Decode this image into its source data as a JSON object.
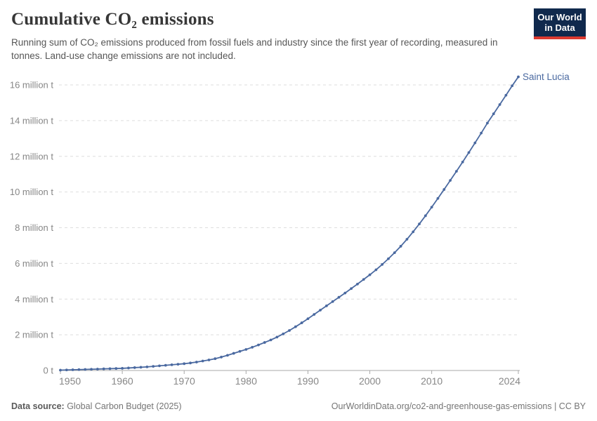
{
  "header": {
    "title": "Cumulative CO₂ emissions",
    "subtitle": "Running sum of CO₂ emissions produced from fossil fuels and industry since the first year of recording, measured in tonnes. Land-use change emissions are not included.",
    "logo": {
      "line1": "Our World",
      "line2": "in Data",
      "bg_color": "#10294d",
      "accent_color": "#dc3a30"
    }
  },
  "footer": {
    "source_label": "Data source:",
    "source_value": " Global Carbon Budget (2025)",
    "rights": "OurWorldinData.org/co2-and-greenhouse-gas-emissions | CC BY"
  },
  "chart_data": {
    "type": "line",
    "title": "Cumulative CO₂ emissions",
    "xlabel": "",
    "ylabel": "",
    "values_unit": "million tonnes",
    "xlim": [
      1950,
      2024
    ],
    "ylim": [
      0,
      16.5
    ],
    "grid": "dashed-horizontal",
    "legend_position": "end-of-line-label",
    "colors": {
      "line": "#4a69a0",
      "grid": "#dedede",
      "axis": "#a8a8a8",
      "tick_text": "#878787"
    },
    "y_ticks": [
      {
        "value": 0,
        "label": "0 t"
      },
      {
        "value": 2,
        "label": "2 million t"
      },
      {
        "value": 4,
        "label": "4 million t"
      },
      {
        "value": 6,
        "label": "6 million t"
      },
      {
        "value": 8,
        "label": "8 million t"
      },
      {
        "value": 10,
        "label": "10 million t"
      },
      {
        "value": 12,
        "label": "12 million t"
      },
      {
        "value": 14,
        "label": "14 million t"
      },
      {
        "value": 16,
        "label": "16 million t"
      }
    ],
    "x_ticks": [
      1950,
      1960,
      1970,
      1980,
      1990,
      2000,
      2010,
      2024
    ],
    "series": [
      {
        "name": "Saint Lucia",
        "color": "#4a69a0",
        "points": [
          [
            1950,
            0.02
          ],
          [
            1951,
            0.03
          ],
          [
            1952,
            0.04
          ],
          [
            1953,
            0.05
          ],
          [
            1954,
            0.06
          ],
          [
            1955,
            0.07
          ],
          [
            1956,
            0.08
          ],
          [
            1957,
            0.09
          ],
          [
            1958,
            0.1
          ],
          [
            1959,
            0.11
          ],
          [
            1960,
            0.12
          ],
          [
            1961,
            0.14
          ],
          [
            1962,
            0.16
          ],
          [
            1963,
            0.18
          ],
          [
            1964,
            0.2
          ],
          [
            1965,
            0.23
          ],
          [
            1966,
            0.26
          ],
          [
            1967,
            0.29
          ],
          [
            1968,
            0.32
          ],
          [
            1969,
            0.35
          ],
          [
            1970,
            0.38
          ],
          [
            1971,
            0.42
          ],
          [
            1972,
            0.47
          ],
          [
            1973,
            0.53
          ],
          [
            1974,
            0.59
          ],
          [
            1975,
            0.66
          ],
          [
            1976,
            0.75
          ],
          [
            1977,
            0.85
          ],
          [
            1978,
            0.96
          ],
          [
            1979,
            1.07
          ],
          [
            1980,
            1.18
          ],
          [
            1981,
            1.3
          ],
          [
            1982,
            1.43
          ],
          [
            1983,
            1.57
          ],
          [
            1984,
            1.71
          ],
          [
            1985,
            1.87
          ],
          [
            1986,
            2.05
          ],
          [
            1987,
            2.24
          ],
          [
            1988,
            2.45
          ],
          [
            1989,
            2.67
          ],
          [
            1990,
            2.9
          ],
          [
            1991,
            3.14
          ],
          [
            1992,
            3.38
          ],
          [
            1993,
            3.62
          ],
          [
            1994,
            3.86
          ],
          [
            1995,
            4.1
          ],
          [
            1996,
            4.34
          ],
          [
            1997,
            4.59
          ],
          [
            1998,
            4.84
          ],
          [
            1999,
            5.1
          ],
          [
            2000,
            5.36
          ],
          [
            2001,
            5.64
          ],
          [
            2002,
            5.94
          ],
          [
            2003,
            6.26
          ],
          [
            2004,
            6.6
          ],
          [
            2005,
            6.96
          ],
          [
            2006,
            7.35
          ],
          [
            2007,
            7.77
          ],
          [
            2008,
            8.21
          ],
          [
            2009,
            8.67
          ],
          [
            2010,
            9.15
          ],
          [
            2011,
            9.64
          ],
          [
            2012,
            10.14
          ],
          [
            2013,
            10.65
          ],
          [
            2014,
            11.16
          ],
          [
            2015,
            11.68
          ],
          [
            2016,
            12.21
          ],
          [
            2017,
            12.75
          ],
          [
            2018,
            13.3
          ],
          [
            2019,
            13.86
          ],
          [
            2020,
            14.38
          ],
          [
            2021,
            14.9
          ],
          [
            2022,
            15.42
          ],
          [
            2023,
            15.95
          ],
          [
            2024,
            16.45
          ]
        ]
      }
    ]
  }
}
